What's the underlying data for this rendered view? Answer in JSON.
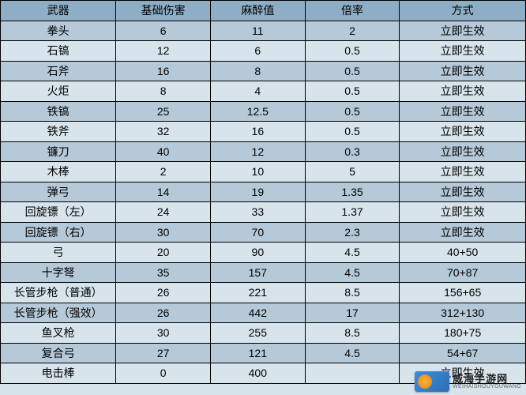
{
  "table": {
    "type": "table",
    "background_color_header": "#8eaec6",
    "row_color_odd": "#b5c9d8",
    "row_color_even": "#d8e4eb",
    "border_color": "#000000",
    "font_size": 14,
    "columns": [
      {
        "label": "武器",
        "width_pct": 22
      },
      {
        "label": "基础伤害",
        "width_pct": 18
      },
      {
        "label": "麻醉值",
        "width_pct": 18
      },
      {
        "label": "倍率",
        "width_pct": 18
      },
      {
        "label": "方式",
        "width_pct": 24
      }
    ],
    "rows": [
      [
        "拳头",
        "6",
        "11",
        "2",
        "立即生效"
      ],
      [
        "石镐",
        "12",
        "6",
        "0.5",
        "立即生效"
      ],
      [
        "石斧",
        "16",
        "8",
        "0.5",
        "立即生效"
      ],
      [
        "火炬",
        "8",
        "4",
        "0.5",
        "立即生效"
      ],
      [
        "铁镐",
        "25",
        "12.5",
        "0.5",
        "立即生效"
      ],
      [
        "铁斧",
        "32",
        "16",
        "0.5",
        "立即生效"
      ],
      [
        "镰刀",
        "40",
        "12",
        "0.3",
        "立即生效"
      ],
      [
        "木棒",
        "2",
        "10",
        "5",
        "立即生效"
      ],
      [
        "弹弓",
        "14",
        "19",
        "1.35",
        "立即生效"
      ],
      [
        "回旋镖（左）",
        "24",
        "33",
        "1.37",
        "立即生效"
      ],
      [
        "回旋镖（右）",
        "30",
        "70",
        "2.3",
        "立即生效"
      ],
      [
        "弓",
        "20",
        "90",
        "4.5",
        "40+50"
      ],
      [
        "十字弩",
        "35",
        "157",
        "4.5",
        "70+87"
      ],
      [
        "长管步枪（普通）",
        "26",
        "221",
        "8.5",
        "156+65"
      ],
      [
        "长管步枪（强效）",
        "26",
        "442",
        "17",
        "312+130"
      ],
      [
        "鱼叉枪",
        "30",
        "255",
        "8.5",
        "180+75"
      ],
      [
        "复合弓",
        "27",
        "121",
        "4.5",
        "54+67"
      ],
      [
        "电击棒",
        "0",
        "400",
        "",
        "立即生效"
      ]
    ]
  },
  "watermark": {
    "cn": "威海手游网",
    "en": "WEIHAISHOUYOUWANG"
  }
}
